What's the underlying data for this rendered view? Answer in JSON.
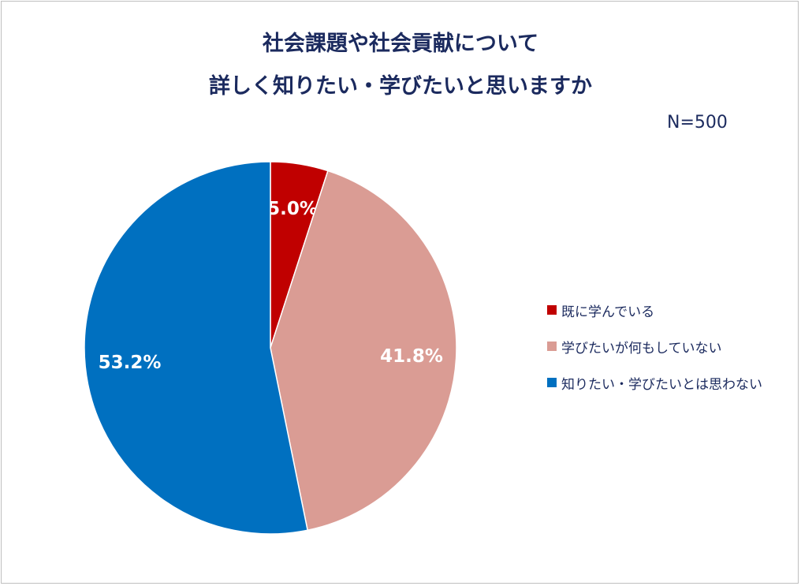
{
  "chart_data": {
    "type": "pie",
    "title_lines": [
      "社会課題や社会貢献について",
      "詳しく知りたい・学びたいと思いますか"
    ],
    "annotation": "N=500",
    "slices": [
      {
        "label": "既に学んでいる",
        "value": 5.0,
        "data_label": "5.0%",
        "color": "#c00000"
      },
      {
        "label": "学びたいが何もしていない",
        "value": 41.8,
        "data_label": "41.8%",
        "color": "#da9c94"
      },
      {
        "label": "知りたい・学びたいとは思わない",
        "value": 53.2,
        "data_label": "53.2%",
        "color": "#0070c0"
      }
    ],
    "start_angle": "top, clockwise",
    "legend_position": "right"
  }
}
